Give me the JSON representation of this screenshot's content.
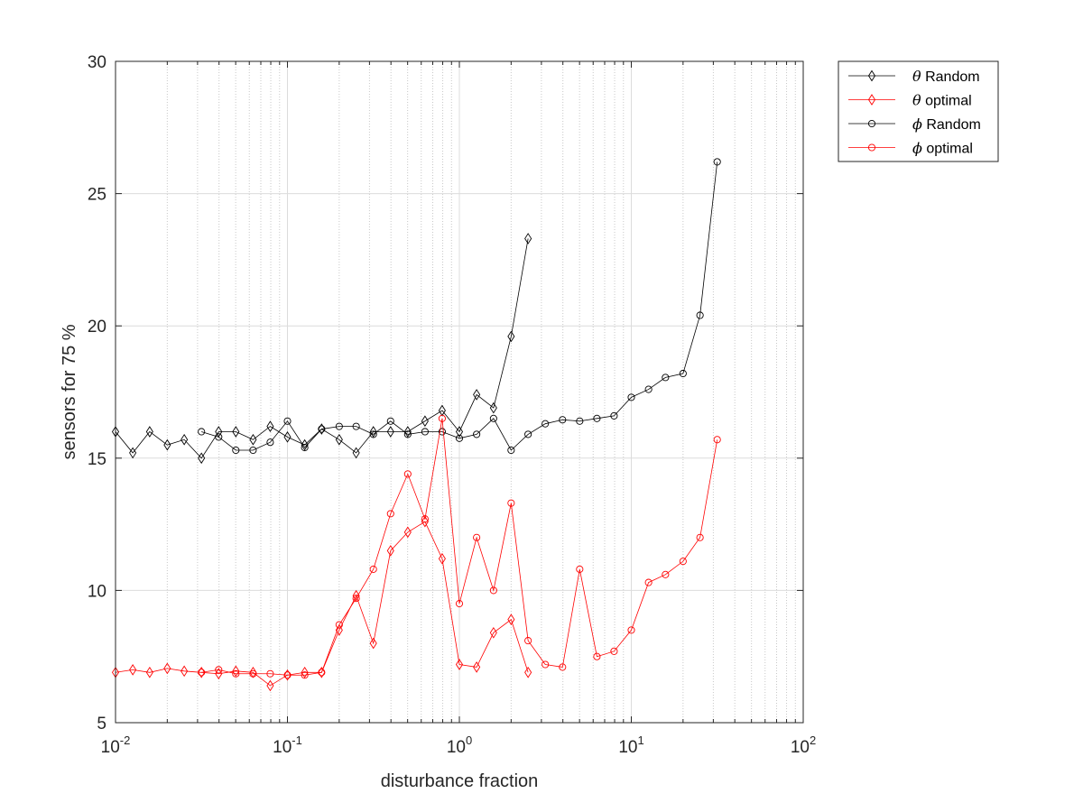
{
  "chart_data": {
    "type": "line",
    "xscale": "log",
    "xlim": [
      0.01,
      100
    ],
    "ylim": [
      5,
      30
    ],
    "xticks": [
      0.01,
      0.1,
      1,
      10,
      100
    ],
    "xtick_labels": [
      {
        "base": "10",
        "exp": "-2"
      },
      {
        "base": "10",
        "exp": "-1"
      },
      {
        "base": "10",
        "exp": "0"
      },
      {
        "base": "10",
        "exp": "1"
      },
      {
        "base": "10",
        "exp": "2"
      }
    ],
    "yticks": [
      5,
      10,
      15,
      20,
      25,
      30
    ],
    "xlabel": "disturbance fraction",
    "ylabel": "sensors for 75 %",
    "grid": true,
    "legend_position": "outside-top-right",
    "series": [
      {
        "name": "θ Random",
        "symbol": "θ",
        "label_rest": " Random",
        "color": "#000000",
        "marker": "diamond",
        "x": [
          0.01,
          0.0126,
          0.0158,
          0.02,
          0.0251,
          0.0316,
          0.0398,
          0.0501,
          0.0631,
          0.0794,
          0.1,
          0.126,
          0.158,
          0.2,
          0.251,
          0.316,
          0.398,
          0.501,
          0.631,
          0.794,
          1,
          1.26,
          1.58,
          2,
          2.51
        ],
        "y": [
          16.0,
          15.2,
          16.0,
          15.5,
          15.7,
          15.0,
          16.0,
          16.0,
          15.7,
          16.2,
          15.8,
          15.5,
          16.1,
          15.7,
          15.2,
          16.0,
          16.0,
          16.0,
          16.4,
          16.8,
          16.0,
          17.4,
          16.9,
          19.6,
          23.3
        ]
      },
      {
        "name": "θ optimal",
        "symbol": "θ",
        "label_rest": " optimal",
        "color": "#ff0000",
        "marker": "diamond",
        "x": [
          0.01,
          0.0126,
          0.0158,
          0.02,
          0.0251,
          0.0316,
          0.0398,
          0.0501,
          0.0631,
          0.0794,
          0.1,
          0.126,
          0.158,
          0.2,
          0.251,
          0.316,
          0.398,
          0.501,
          0.631,
          0.794,
          1,
          1.26,
          1.58,
          2,
          2.51
        ],
        "y": [
          6.9,
          7.0,
          6.9,
          7.05,
          6.95,
          6.9,
          6.85,
          6.95,
          6.9,
          6.4,
          6.8,
          6.9,
          6.9,
          8.5,
          9.8,
          8.0,
          11.5,
          12.2,
          12.6,
          11.2,
          7.2,
          7.1,
          8.4,
          8.9,
          6.9
        ]
      },
      {
        "name": "ϕ Random",
        "symbol": "ϕ",
        "label_rest": " Random",
        "color": "#000000",
        "marker": "circle",
        "x": [
          0.0316,
          0.0398,
          0.0501,
          0.0631,
          0.0794,
          0.1,
          0.126,
          0.158,
          0.2,
          0.251,
          0.316,
          0.398,
          0.501,
          0.631,
          0.794,
          1,
          1.26,
          1.58,
          2,
          2.51,
          3.16,
          3.98,
          5.01,
          6.31,
          7.94,
          10,
          12.6,
          15.8,
          20,
          25.1,
          31.6
        ],
        "y": [
          16.0,
          15.8,
          15.3,
          15.3,
          15.6,
          16.4,
          15.4,
          16.1,
          16.2,
          16.2,
          15.9,
          16.4,
          15.9,
          16.0,
          16.0,
          15.75,
          15.9,
          16.5,
          15.3,
          15.9,
          16.3,
          16.45,
          16.4,
          16.5,
          16.6,
          17.3,
          17.6,
          18.05,
          18.2,
          20.4,
          26.2
        ]
      },
      {
        "name": "ϕ optimal",
        "symbol": "ϕ",
        "label_rest": " optimal",
        "color": "#ff0000",
        "marker": "circle",
        "x": [
          0.0316,
          0.0398,
          0.0501,
          0.0631,
          0.0794,
          0.1,
          0.126,
          0.158,
          0.2,
          0.251,
          0.316,
          0.398,
          0.501,
          0.631,
          0.794,
          1,
          1.26,
          1.58,
          2,
          2.51,
          3.16,
          3.98,
          5.01,
          6.31,
          7.94,
          10,
          12.6,
          15.8,
          20,
          25.1,
          31.6
        ],
        "y": [
          6.9,
          7.0,
          6.85,
          6.85,
          6.85,
          6.8,
          6.8,
          6.9,
          8.7,
          9.7,
          10.8,
          12.9,
          14.4,
          12.7,
          16.5,
          9.5,
          12.0,
          10.0,
          13.3,
          8.1,
          7.2,
          7.1,
          10.8,
          7.5,
          7.7,
          8.5,
          10.3,
          10.6,
          11.1,
          12.0,
          15.7
        ]
      }
    ]
  }
}
